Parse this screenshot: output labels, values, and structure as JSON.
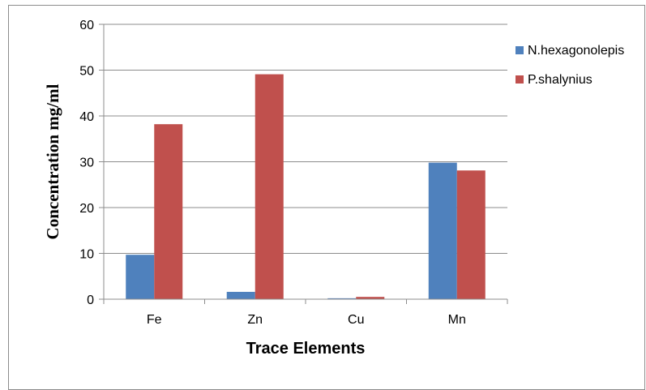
{
  "chart_data": {
    "type": "bar",
    "title": "",
    "xlabel": "Trace Elements",
    "ylabel": "Concentration  mg/ml",
    "categories": [
      "Fe",
      "Zn",
      "Cu",
      "Mn"
    ],
    "series": [
      {
        "name": "N.hexagonolepis",
        "color": "#4F81BD",
        "values": [
          9.7,
          1.6,
          0.2,
          29.8
        ]
      },
      {
        "name": "P.shalynius",
        "color": "#C0504D",
        "values": [
          38.2,
          49.1,
          0.5,
          28.1
        ]
      }
    ],
    "ylim": [
      0,
      60
    ],
    "yticks": [
      0,
      10,
      20,
      30,
      40,
      50,
      60
    ],
    "grid": true,
    "legend_position": "right"
  }
}
